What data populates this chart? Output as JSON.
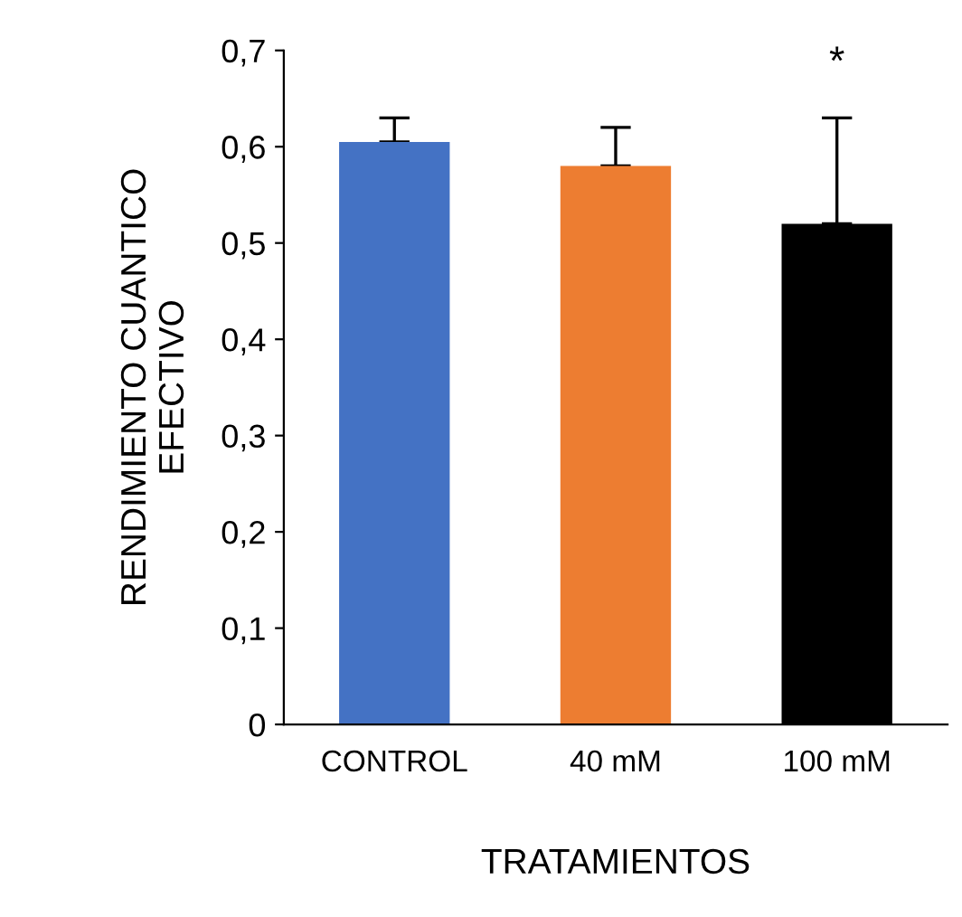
{
  "chart_data": {
    "type": "bar",
    "categories": [
      "CONTROL",
      "40 mM",
      "100 mM"
    ],
    "values": [
      0.605,
      0.58,
      0.52
    ],
    "colors": [
      "#4472c4",
      "#ed7d31",
      "#000000"
    ],
    "errors": [
      [
        0.605,
        0.63
      ],
      [
        0.58,
        0.62
      ],
      [
        0.52,
        0.63
      ]
    ],
    "xlabel": "TRATAMIENTOS",
    "ylabel": "RENDIMIENTO CUANTICO\nEFECTIVO",
    "ylim": [
      0,
      0.7
    ],
    "yticks": [
      {
        "value": 0,
        "label": "0"
      },
      {
        "value": 0.1,
        "label": "0,1"
      },
      {
        "value": 0.2,
        "label": "0,2"
      },
      {
        "value": 0.3,
        "label": "0,3"
      },
      {
        "value": 0.4,
        "label": "0,4"
      },
      {
        "value": 0.5,
        "label": "0,5"
      },
      {
        "value": 0.6,
        "label": "0,6"
      },
      {
        "value": 0.7,
        "label": "0,7"
      }
    ],
    "annotations": [
      "*"
    ],
    "grid": false,
    "legend": false
  }
}
